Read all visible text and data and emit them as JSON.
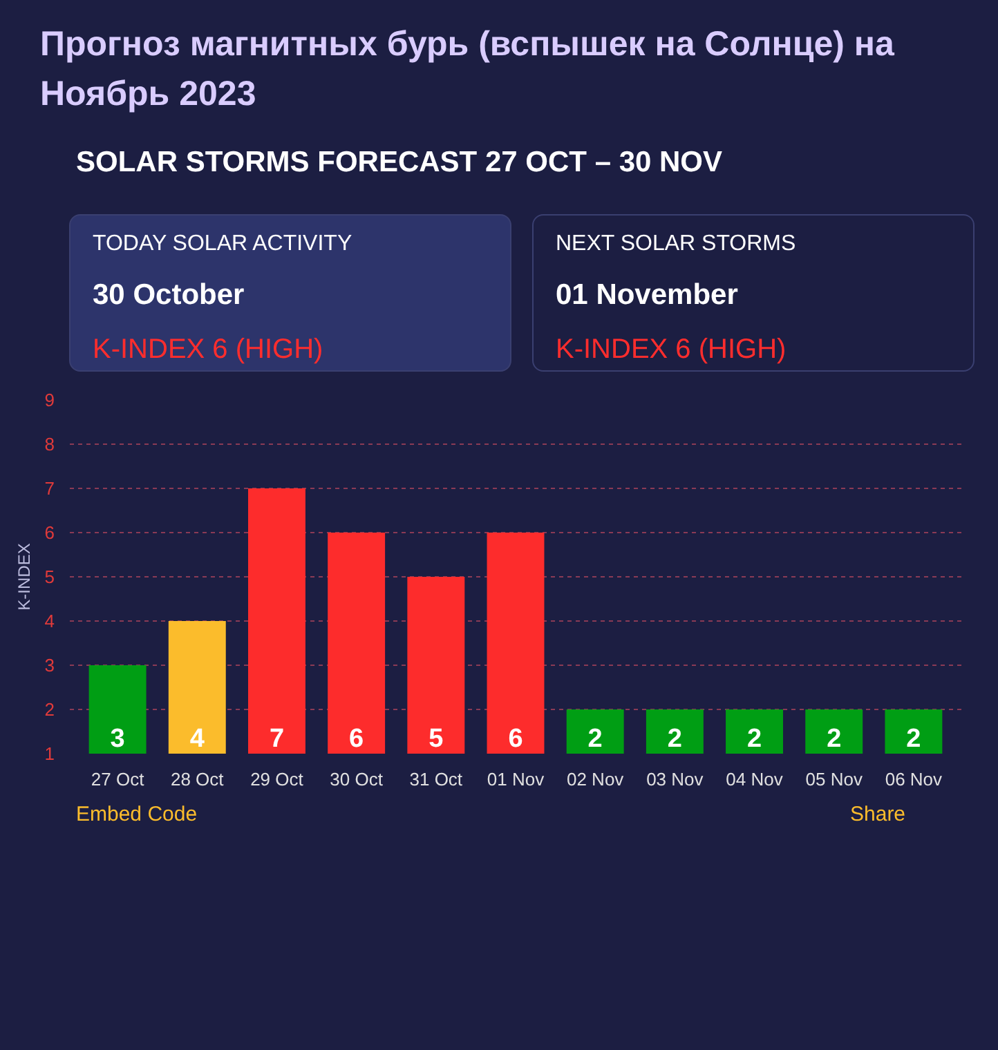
{
  "chart_data": {
    "type": "bar",
    "title": "Прогноз магнитных бурь (вспышек на Солнце) на Ноябрь 2023",
    "subtitle": "SOLAR STORMS FORECAST 27 OCT – 30 NOV",
    "ylabel": "K-INDEX",
    "categories": [
      "27 Oct",
      "28 Oct",
      "29 Oct",
      "30 Oct",
      "31 Oct",
      "01 Nov",
      "02 Nov",
      "03 Nov",
      "04 Nov",
      "05 Nov",
      "06 Nov"
    ],
    "values": [
      3,
      4,
      7,
      6,
      5,
      6,
      2,
      2,
      2,
      2,
      2
    ],
    "colors": [
      "#009e14",
      "#fbbc2c",
      "#fd2c2c",
      "#fd2c2c",
      "#fd2c2c",
      "#fd2c2c",
      "#009e14",
      "#009e14",
      "#009e14",
      "#009e14",
      "#009e14"
    ],
    "ylim": [
      1,
      9
    ],
    "yticks": [
      1,
      2,
      3,
      4,
      5,
      6,
      7,
      8,
      9
    ],
    "grid": "y",
    "data_labels": true,
    "annotations": [
      "TODAY SOLAR ACTIVITY",
      "30 October",
      "K-INDEX 6 (HIGH)",
      "NEXT SOLAR STORMS",
      "01 November",
      "K-INDEX 6 (HIGH)",
      "Embed Code",
      "Share"
    ]
  }
}
